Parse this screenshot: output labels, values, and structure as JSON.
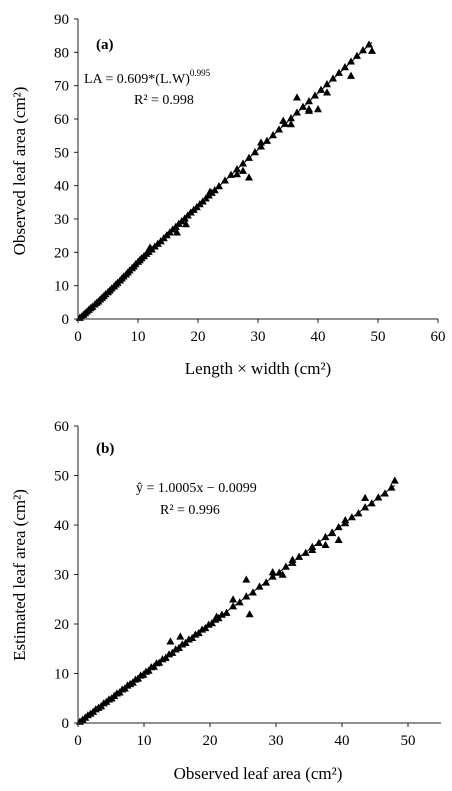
{
  "chart_data": [
    {
      "type": "scatter",
      "panel_label": "(a)",
      "xlabel": "Length × width (cm²)",
      "ylabel": "Observed leaf area (cm²)",
      "xlim": [
        0,
        60
      ],
      "ylim": [
        0,
        90
      ],
      "xticks": [
        "0",
        "10",
        "20",
        "30",
        "40",
        "50",
        "60"
      ],
      "yticks": [
        "0",
        "10",
        "20",
        "30",
        "40",
        "50",
        "60",
        "70",
        "80",
        "90"
      ],
      "equation_main": "LA = 0.609*(L.W)",
      "equation_sup": "0.995",
      "r2": "R² = 0.998",
      "marker": "triangle",
      "fit_line": {
        "x": [
          0,
          49
        ],
        "y": [
          0,
          83
        ]
      },
      "points": [
        [
          0.3,
          0.4
        ],
        [
          0.6,
          0.8
        ],
        [
          0.9,
          1.3
        ],
        [
          1.2,
          1.8
        ],
        [
          1.5,
          2.3
        ],
        [
          1.8,
          2.8
        ],
        [
          2.1,
          3.3
        ],
        [
          2.4,
          3.7
        ],
        [
          2.8,
          4.4
        ],
        [
          3.1,
          4.9
        ],
        [
          3.4,
          5.3
        ],
        [
          3.7,
          5.9
        ],
        [
          4.0,
          6.4
        ],
        [
          4.3,
          6.9
        ],
        [
          4.6,
          7.5
        ],
        [
          5.0,
          8.1
        ],
        [
          5.3,
          8.6
        ],
        [
          5.6,
          9.2
        ],
        [
          6.0,
          9.8
        ],
        [
          6.3,
          10.4
        ],
        [
          6.6,
          10.9
        ],
        [
          7.0,
          11.6
        ],
        [
          7.3,
          12.2
        ],
        [
          7.6,
          12.8
        ],
        [
          8.0,
          13.4
        ],
        [
          8.3,
          14.0
        ],
        [
          8.6,
          14.6
        ],
        [
          9.0,
          15.3
        ],
        [
          9.3,
          15.8
        ],
        [
          9.6,
          16.5
        ],
        [
          10.0,
          17.2
        ],
        [
          10.3,
          17.7
        ],
        [
          10.6,
          18.3
        ],
        [
          11.0,
          18.9
        ],
        [
          11.4,
          19.6
        ],
        [
          11.8,
          20.2
        ],
        [
          12.3,
          20.9
        ],
        [
          12.8,
          21.8
        ],
        [
          13.3,
          22.6
        ],
        [
          13.8,
          23.4
        ],
        [
          14.3,
          24.3
        ],
        [
          14.8,
          25.2
        ],
        [
          15.3,
          26.0
        ],
        [
          15.8,
          26.9
        ],
        [
          16.3,
          27.7
        ],
        [
          16.8,
          28.6
        ],
        [
          17.3,
          29.4
        ],
        [
          17.8,
          30.2
        ],
        [
          18.3,
          31.1
        ],
        [
          18.8,
          32.0
        ],
        [
          19.3,
          32.8
        ],
        [
          19.8,
          33.6
        ],
        [
          20.3,
          34.5
        ],
        [
          20.8,
          35.3
        ],
        [
          21.3,
          36.2
        ],
        [
          21.8,
          37.1
        ],
        [
          22.3,
          37.9
        ],
        [
          22.8,
          38.7
        ],
        [
          23.5,
          39.9
        ],
        [
          24.5,
          41.6
        ],
        [
          25.5,
          43.3
        ],
        [
          26.5,
          45.0
        ],
        [
          27.5,
          46.7
        ],
        [
          28.5,
          48.4
        ],
        [
          29.5,
          50.1
        ],
        [
          30.5,
          51.8
        ],
        [
          31.5,
          53.5
        ],
        [
          32.5,
          55.2
        ],
        [
          33.5,
          56.9
        ],
        [
          34.5,
          58.6
        ],
        [
          35.5,
          60.3
        ],
        [
          36.5,
          62.0
        ],
        [
          37.5,
          63.7
        ],
        [
          38.5,
          65.4
        ],
        [
          39.5,
          67.1
        ],
        [
          40.5,
          68.8
        ],
        [
          41.5,
          70.5
        ],
        [
          42.5,
          72.2
        ],
        [
          43.5,
          73.9
        ],
        [
          44.5,
          75.6
        ],
        [
          45.5,
          77.3
        ],
        [
          46.5,
          79.0
        ],
        [
          47.5,
          80.7
        ],
        [
          48.5,
          82.4
        ],
        [
          49.0,
          80.5
        ],
        [
          45.5,
          73.0
        ],
        [
          41.5,
          68.0
        ],
        [
          38.5,
          63.0
        ],
        [
          38.5,
          62.5
        ],
        [
          36.5,
          66.5
        ],
        [
          34.2,
          59.5
        ],
        [
          30.5,
          53.0
        ],
        [
          28.5,
          42.5
        ],
        [
          22.0,
          38.2
        ],
        [
          16.5,
          26.0
        ],
        [
          12.0,
          21.5
        ],
        [
          18.0,
          28.5
        ],
        [
          26.5,
          43.5
        ],
        [
          27.5,
          44.5
        ],
        [
          35.5,
          58.5
        ],
        [
          40.0,
          63.0
        ]
      ]
    },
    {
      "type": "scatter",
      "panel_label": "(b)",
      "xlabel": "Observed leaf area (cm²)",
      "ylabel": "Estimated leaf area (cm²)",
      "xlim": [
        0,
        55
      ],
      "ylim": [
        0,
        60
      ],
      "xticks": [
        "0",
        "10",
        "20",
        "30",
        "40",
        "50"
      ],
      "yticks": [
        "0",
        "10",
        "20",
        "30",
        "40",
        "50",
        "60"
      ],
      "equation_main": "ŷ = 1.0005x − 0.0099",
      "r2": "R² = 0.996",
      "marker": "triangle",
      "fit_line": {
        "x": [
          0,
          48
        ],
        "y": [
          0,
          48
        ]
      },
      "points": [
        [
          0.3,
          0.3
        ],
        [
          0.7,
          0.7
        ],
        [
          1.1,
          1.1
        ],
        [
          1.5,
          1.6
        ],
        [
          1.9,
          1.9
        ],
        [
          2.3,
          2.3
        ],
        [
          2.7,
          2.8
        ],
        [
          3.1,
          3.1
        ],
        [
          3.5,
          3.4
        ],
        [
          3.9,
          4.0
        ],
        [
          4.3,
          4.3
        ],
        [
          4.7,
          4.8
        ],
        [
          5.1,
          5.0
        ],
        [
          5.5,
          5.5
        ],
        [
          5.9,
          6.0
        ],
        [
          6.3,
          6.2
        ],
        [
          6.7,
          6.8
        ],
        [
          7.1,
          7.0
        ],
        [
          7.5,
          7.6
        ],
        [
          7.9,
          7.9
        ],
        [
          8.3,
          8.2
        ],
        [
          8.7,
          8.8
        ],
        [
          9.1,
          9.0
        ],
        [
          9.5,
          9.6
        ],
        [
          9.9,
          9.8
        ],
        [
          10.3,
          10.4
        ],
        [
          10.7,
          10.6
        ],
        [
          11.1,
          11.3
        ],
        [
          11.5,
          11.4
        ],
        [
          11.9,
          12.1
        ],
        [
          12.3,
          12.2
        ],
        [
          12.8,
          12.9
        ],
        [
          13.3,
          13.2
        ],
        [
          13.8,
          13.9
        ],
        [
          14.3,
          14.2
        ],
        [
          14.8,
          14.9
        ],
        [
          15.3,
          15.2
        ],
        [
          15.8,
          15.9
        ],
        [
          16.3,
          16.2
        ],
        [
          16.8,
          16.9
        ],
        [
          17.3,
          17.2
        ],
        [
          17.8,
          17.9
        ],
        [
          18.3,
          18.2
        ],
        [
          18.8,
          18.9
        ],
        [
          19.3,
          19.2
        ],
        [
          19.8,
          19.9
        ],
        [
          20.3,
          20.2
        ],
        [
          20.8,
          20.9
        ],
        [
          21.3,
          21.2
        ],
        [
          21.8,
          21.9
        ],
        [
          22.5,
          22.3
        ],
        [
          23.5,
          23.6
        ],
        [
          24.5,
          24.4
        ],
        [
          25.5,
          25.6
        ],
        [
          26.5,
          26.4
        ],
        [
          27.5,
          27.6
        ],
        [
          28.5,
          28.4
        ],
        [
          29.5,
          29.6
        ],
        [
          30.5,
          30.4
        ],
        [
          31.5,
          31.6
        ],
        [
          32.5,
          32.4
        ],
        [
          33.5,
          33.6
        ],
        [
          34.5,
          34.4
        ],
        [
          35.5,
          35.6
        ],
        [
          36.5,
          36.4
        ],
        [
          37.5,
          37.6
        ],
        [
          38.5,
          38.4
        ],
        [
          39.5,
          39.6
        ],
        [
          40.5,
          40.4
        ],
        [
          41.5,
          41.6
        ],
        [
          42.5,
          42.4
        ],
        [
          43.5,
          43.6
        ],
        [
          44.5,
          44.4
        ],
        [
          45.5,
          45.6
        ],
        [
          46.5,
          46.4
        ],
        [
          47.5,
          47.6
        ],
        [
          48.0,
          49.0
        ],
        [
          43.5,
          45.5
        ],
        [
          40.5,
          41.0
        ],
        [
          39.5,
          37.0
        ],
        [
          37.5,
          36.0
        ],
        [
          38.5,
          38.5
        ],
        [
          35.5,
          35.0
        ],
        [
          32.5,
          33.0
        ],
        [
          29.5,
          30.5
        ],
        [
          25.5,
          29.0
        ],
        [
          26.0,
          22.0
        ],
        [
          23.5,
          25.0
        ],
        [
          15.5,
          17.5
        ],
        [
          14.0,
          16.5
        ],
        [
          31.0,
          30.0
        ],
        [
          21.0,
          21.5
        ]
      ]
    }
  ]
}
